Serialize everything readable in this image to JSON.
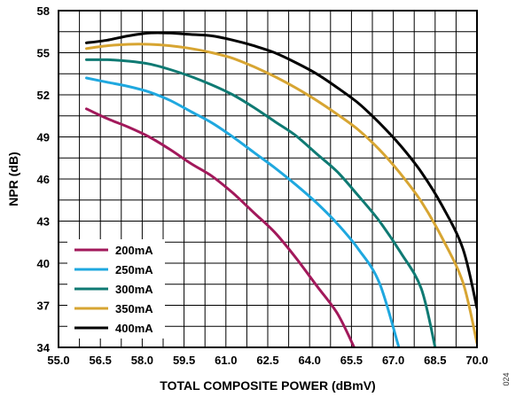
{
  "figure_id": "024",
  "chart_data": {
    "type": "line",
    "xlabel": "TOTAL COMPOSITE POWER (dBmV)",
    "ylabel": "NPR (dB)",
    "xlim": [
      55.0,
      70.0
    ],
    "ylim": [
      34,
      58
    ],
    "xticks": [
      "55.0",
      "56.5",
      "58.0",
      "59.5",
      "61.0",
      "62.5",
      "64.0",
      "65.5",
      "67.0",
      "68.5",
      "70.0"
    ],
    "yticks": [
      "34",
      "37",
      "40",
      "43",
      "46",
      "49",
      "52",
      "55",
      "58"
    ],
    "x_gridlines": [
      55.0,
      55.75,
      56.5,
      57.25,
      58.0,
      58.75,
      59.5,
      60.25,
      61.0,
      61.75,
      62.5,
      63.25,
      64.0,
      64.75,
      65.5,
      66.25,
      67.0,
      67.75,
      68.5,
      69.25,
      70.0
    ],
    "y_gridlines": [
      34,
      35.5,
      37,
      38.5,
      40,
      41.5,
      43,
      44.5,
      46,
      47.5,
      49,
      50.5,
      52,
      53.5,
      55,
      56.5,
      58
    ],
    "grid": true,
    "legend_position": "bottom-left",
    "series": [
      {
        "name": "200mA",
        "color": "#a2195b",
        "x": [
          56.0,
          56.75,
          57.5,
          58.25,
          59.0,
          59.75,
          60.5,
          61.25,
          62.0,
          62.75,
          63.5,
          64.25,
          65.0,
          65.6
        ],
        "y": [
          51.0,
          50.3,
          49.7,
          49.0,
          48.1,
          47.1,
          46.2,
          45.0,
          43.6,
          42.2,
          40.4,
          38.4,
          36.4,
          34.0
        ]
      },
      {
        "name": "250mA",
        "color": "#1fa8df",
        "x": [
          56.0,
          56.75,
          57.5,
          58.25,
          59.0,
          59.75,
          60.5,
          61.25,
          62.0,
          62.75,
          63.5,
          64.25,
          65.0,
          65.75,
          66.5,
          67.2
        ],
        "y": [
          53.2,
          52.9,
          52.6,
          52.2,
          51.6,
          50.8,
          50.0,
          49.0,
          47.9,
          46.8,
          45.6,
          44.3,
          42.8,
          41.0,
          38.6,
          34.0
        ]
      },
      {
        "name": "300mA",
        "color": "#0f7a73",
        "x": [
          56.0,
          56.75,
          57.5,
          58.25,
          59.0,
          59.75,
          60.5,
          61.25,
          62.0,
          62.75,
          63.5,
          64.25,
          65.0,
          65.75,
          66.5,
          67.25,
          68.0,
          68.5
        ],
        "y": [
          54.5,
          54.5,
          54.4,
          54.2,
          53.8,
          53.3,
          52.7,
          52.0,
          51.1,
          50.1,
          49.1,
          47.8,
          46.5,
          44.8,
          43.0,
          40.8,
          38.2,
          34.0
        ]
      },
      {
        "name": "350mA",
        "color": "#d7a532",
        "x": [
          56.0,
          56.75,
          57.5,
          58.25,
          59.0,
          59.75,
          60.5,
          61.25,
          62.0,
          62.75,
          63.5,
          64.25,
          65.0,
          65.75,
          66.5,
          67.25,
          68.0,
          68.75,
          69.5,
          70.0
        ],
        "y": [
          55.3,
          55.5,
          55.6,
          55.6,
          55.5,
          55.3,
          55.0,
          54.6,
          54.0,
          53.3,
          52.5,
          51.6,
          50.6,
          49.5,
          48.1,
          46.4,
          44.4,
          41.8,
          38.6,
          34.3
        ]
      },
      {
        "name": "400mA",
        "color": "#000000",
        "x": [
          56.0,
          56.75,
          57.5,
          58.25,
          59.0,
          59.75,
          60.5,
          61.25,
          62.0,
          62.75,
          63.5,
          64.25,
          65.0,
          65.75,
          66.5,
          67.25,
          68.0,
          68.75,
          69.5,
          70.0
        ],
        "y": [
          55.7,
          55.9,
          56.2,
          56.4,
          56.4,
          56.3,
          56.2,
          55.9,
          55.5,
          55.0,
          54.3,
          53.5,
          52.5,
          51.4,
          50.0,
          48.4,
          46.5,
          44.1,
          41.0,
          36.8
        ]
      }
    ]
  }
}
